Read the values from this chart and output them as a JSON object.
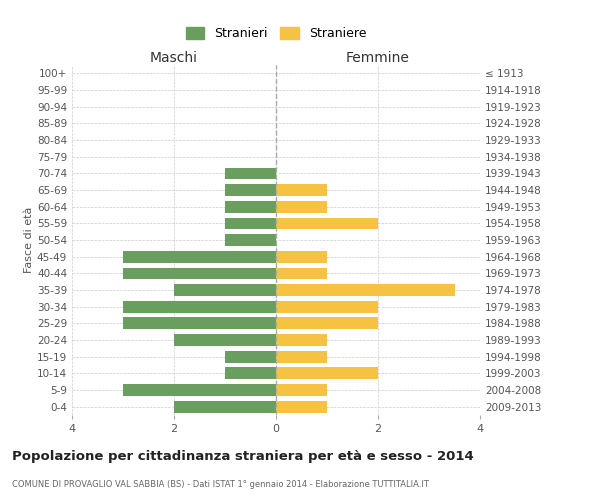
{
  "age_groups": [
    "0-4",
    "5-9",
    "10-14",
    "15-19",
    "20-24",
    "25-29",
    "30-34",
    "35-39",
    "40-44",
    "45-49",
    "50-54",
    "55-59",
    "60-64",
    "65-69",
    "70-74",
    "75-79",
    "80-84",
    "85-89",
    "90-94",
    "95-99",
    "100+"
  ],
  "birth_years": [
    "2009-2013",
    "2004-2008",
    "1999-2003",
    "1994-1998",
    "1989-1993",
    "1984-1988",
    "1979-1983",
    "1974-1978",
    "1969-1973",
    "1964-1968",
    "1959-1963",
    "1954-1958",
    "1949-1953",
    "1944-1948",
    "1939-1943",
    "1934-1938",
    "1929-1933",
    "1924-1928",
    "1919-1923",
    "1914-1918",
    "≤ 1913"
  ],
  "males": [
    2,
    3,
    1,
    1,
    2,
    3,
    3,
    2,
    3,
    3,
    1,
    1,
    1,
    1,
    1,
    0,
    0,
    0,
    0,
    0,
    0
  ],
  "females": [
    1,
    1,
    2,
    1,
    1,
    2,
    2,
    3.5,
    1,
    1,
    0,
    2,
    1,
    1,
    0,
    0,
    0,
    0,
    0,
    0,
    0
  ],
  "male_color": "#6a9e5e",
  "female_color": "#f5c242",
  "title": "Popolazione per cittadinanza straniera per età e sesso - 2014",
  "subtitle": "COMUNE DI PROVAGLIO VAL SABBIA (BS) - Dati ISTAT 1° gennaio 2014 - Elaborazione TUTTITALIA.IT",
  "xlabel_left": "Maschi",
  "xlabel_right": "Femmine",
  "ylabel": "Fasce di età",
  "legend_male": "Stranieri",
  "legend_female": "Straniere",
  "xlim": 4,
  "bg_color": "#ffffff",
  "grid_color": "#cccccc",
  "bar_height": 0.7
}
